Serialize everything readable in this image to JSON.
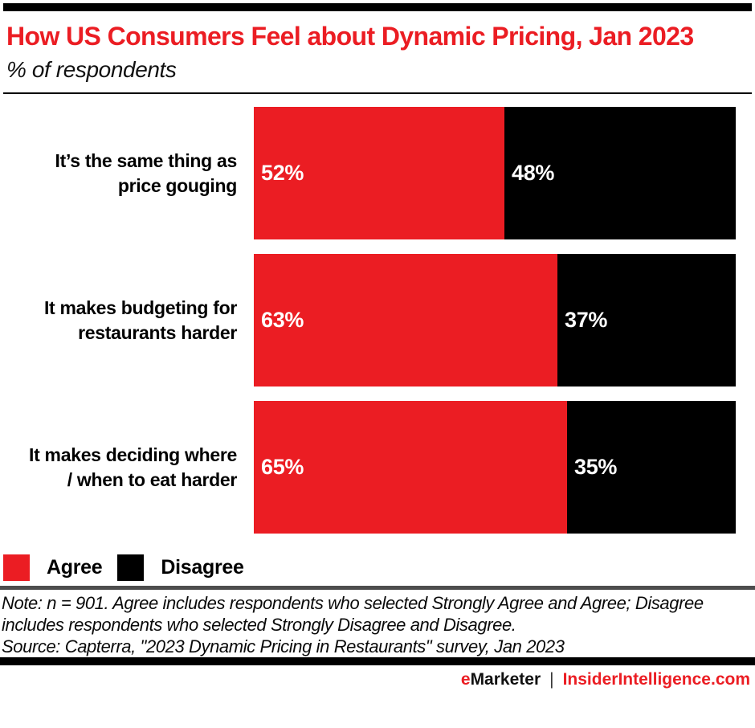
{
  "chart_data": {
    "type": "bar",
    "orientation": "horizontal",
    "stacked": true,
    "title": "How US Consumers Feel about Dynamic Pricing, Jan 2023",
    "subtitle": "% of respondents",
    "xlim": [
      0,
      100
    ],
    "grid": false,
    "legend_position": "bottom-left",
    "categories": [
      "It’s the same thing as price gouging",
      "It makes budgeting for restaurants harder",
      "It makes deciding where / when to eat harder"
    ],
    "series": [
      {
        "name": "Agree",
        "color": "#EB1D23",
        "values": [
          52,
          63,
          65
        ]
      },
      {
        "name": "Disagree",
        "color": "#000000",
        "values": [
          48,
          37,
          35
        ]
      }
    ],
    "rows": [
      {
        "label": "It’s the same thing as\nprice gouging",
        "agree": 52,
        "agree_label": "52%",
        "disagree": 48,
        "disagree_label": "48%"
      },
      {
        "label": "It makes budgeting for\nrestaurants harder",
        "agree": 63,
        "agree_label": "63%",
        "disagree": 37,
        "disagree_label": "37%"
      },
      {
        "label": "It makes deciding where\n/ when to eat harder",
        "agree": 65,
        "agree_label": "65%",
        "disagree": 35,
        "disagree_label": "35%"
      }
    ]
  },
  "legend": {
    "items": [
      {
        "label": "Agree",
        "color": "#EB1D23"
      },
      {
        "label": "Disagree",
        "color": "#000000"
      }
    ]
  },
  "footnotes": {
    "note": "Note: n = 901. Agree includes respondents who selected Strongly Agree and Agree; Disagree includes respondents who selected Strongly Disagree and Disagree.",
    "source": "Source: Capterra, \"2023 Dynamic Pricing in Restaurants\" survey, Jan 2023"
  },
  "footer": {
    "brand_accent": "e",
    "brand_rest": "Marketer",
    "separator": "|",
    "site": "InsiderIntelligence.com"
  },
  "colors": {
    "agree_red": "#EB1D23",
    "disagree_black": "#000000",
    "title_red": "#EB1D23",
    "note_divider_gray": "#4D4D4D",
    "value_label_white": "#FFFFFF"
  }
}
